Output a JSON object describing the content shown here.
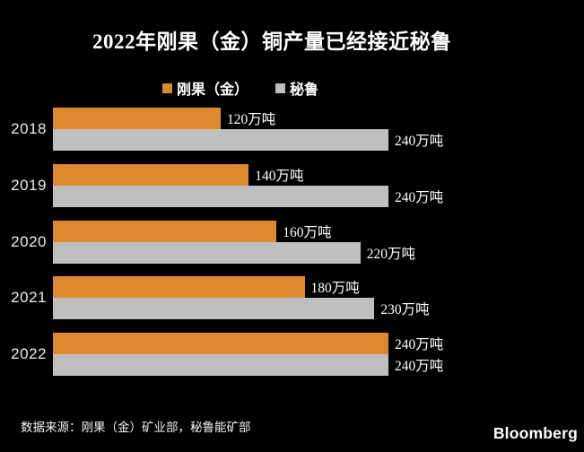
{
  "title": "2022年刚果（金）铜产量已经接近秘鲁",
  "legend": [
    {
      "label": "刚果（金）",
      "color": "#DD8A2E"
    },
    {
      "label": "秘鲁",
      "color": "#BFBFBF"
    }
  ],
  "chart_data": {
    "type": "bar",
    "orientation": "horizontal",
    "title": "2022年刚果（金）铜产量已经接近秘鲁",
    "unit": "万吨",
    "categories": [
      "2018",
      "2019",
      "2020",
      "2021",
      "2022"
    ],
    "series": [
      {
        "name": "刚果（金）",
        "color": "#DD8A2E",
        "values": [
          120,
          140,
          160,
          180,
          240
        ],
        "labels": [
          "120万吨",
          "140万吨",
          "160万吨",
          "180万吨",
          "240万吨"
        ]
      },
      {
        "name": "秘鲁",
        "color": "#BFBFBF",
        "values": [
          240,
          240,
          220,
          230,
          240
        ],
        "labels": [
          "240万吨",
          "240万吨",
          "220万吨",
          "230万吨",
          "240万吨"
        ]
      }
    ],
    "xlim": [
      0,
      240
    ],
    "grid": false,
    "legend_position": "top",
    "background": "#000000"
  },
  "source": "数据来源：刚果（金）矿业部，秘鲁能矿部",
  "brand": "Bloomberg"
}
